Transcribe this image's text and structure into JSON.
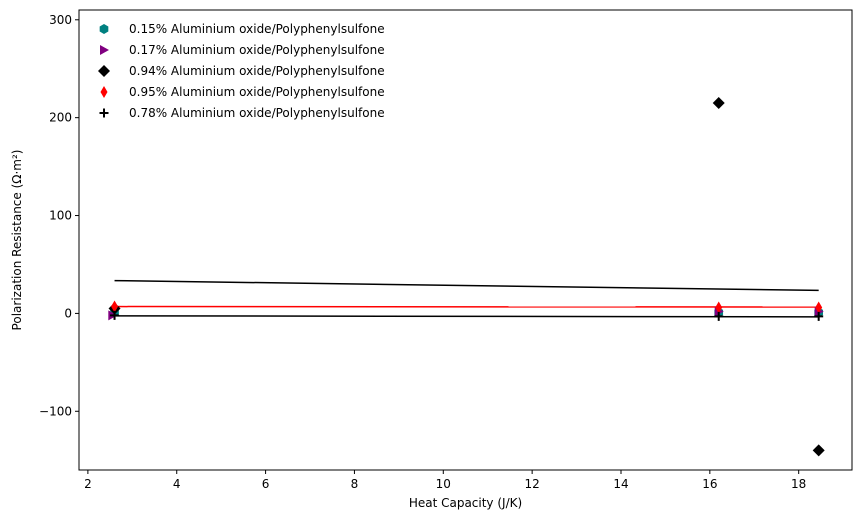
{
  "chart_data": {
    "type": "scatter",
    "title": "",
    "xlabel": "Heat Capacity (J/K)",
    "ylabel": "Polarization Resistance (Ω·m²)",
    "xlim": [
      1.8,
      19.2
    ],
    "ylim": [
      -160,
      310
    ],
    "x_ticks": [
      2,
      4,
      6,
      8,
      10,
      12,
      14,
      16,
      18
    ],
    "y_ticks": [
      -100,
      0,
      100,
      200,
      300
    ],
    "y_tick_labels": [
      "−100",
      "0",
      "100",
      "200",
      "300"
    ],
    "grid": false,
    "legend_position": "top-left",
    "series": [
      {
        "name": "0.15% Aluminium oxide/Polyphenylsulfone",
        "marker": "hexagon",
        "color": "#008080",
        "points": [
          [
            2.6,
            2
          ],
          [
            16.2,
            1
          ],
          [
            18.45,
            1
          ]
        ]
      },
      {
        "name": "0.17% Aluminium oxide/Polyphenylsulfone",
        "marker": "triangle-right",
        "color": "#800080",
        "points": [
          [
            2.55,
            -2
          ],
          [
            16.2,
            2
          ],
          [
            18.45,
            2
          ]
        ]
      },
      {
        "name": "0.94% Aluminium oxide/Polyphenylsulfone",
        "marker": "diamond",
        "color": "#000000",
        "points": [
          [
            2.6,
            5
          ],
          [
            16.2,
            215
          ],
          [
            18.45,
            -140
          ]
        ]
      },
      {
        "name": "0.95% Aluminium oxide/Polyphenylsulfone",
        "marker": "thin-diamond",
        "color": "#ff0000",
        "points": [
          [
            2.6,
            7
          ],
          [
            16.2,
            6
          ],
          [
            18.45,
            6
          ]
        ]
      },
      {
        "name": "0.78% Aluminium oxide/Polyphenylsulfone",
        "marker": "plus",
        "color": "#000000",
        "points": [
          [
            2.6,
            -2
          ],
          [
            16.2,
            -3
          ],
          [
            18.45,
            -3
          ]
        ]
      }
    ],
    "trend_lines": [
      {
        "color": "#000000",
        "points": [
          [
            2.6,
            33.5
          ],
          [
            18.45,
            23.5
          ]
        ]
      },
      {
        "color": "#ff0000",
        "points": [
          [
            2.6,
            7
          ],
          [
            18.45,
            6.5
          ]
        ]
      },
      {
        "color": "#000000",
        "points": [
          [
            2.6,
            -2.5
          ],
          [
            18.45,
            -3.5
          ]
        ]
      }
    ]
  }
}
